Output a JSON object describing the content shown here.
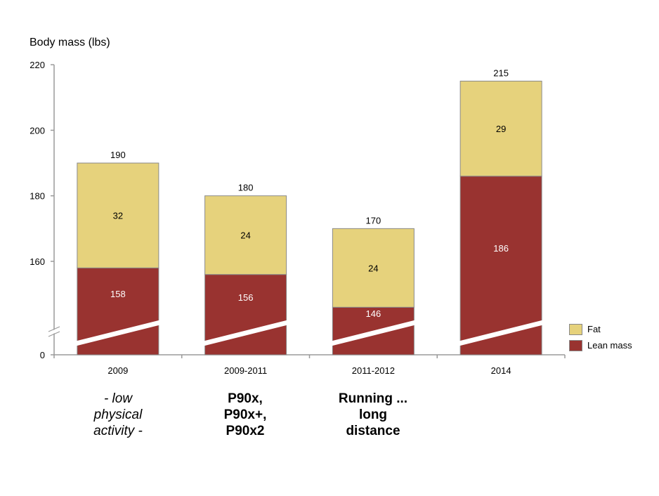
{
  "chart_data": {
    "type": "bar",
    "stacked": true,
    "title": "",
    "ylabel": "Body mass (lbs)",
    "xlabel": "",
    "categories": [
      "2009",
      "2009-2011",
      "2011-2012",
      "2014"
    ],
    "series": [
      {
        "name": "Lean mass",
        "color": "#993330",
        "values": [
          158,
          156,
          146,
          186
        ]
      },
      {
        "name": "Fat",
        "color": "#E6D27C",
        "values": [
          32,
          24,
          24,
          29
        ]
      }
    ],
    "totals": [
      190,
      180,
      170,
      215
    ],
    "ylim": [
      0,
      220
    ],
    "axis_break": true,
    "yticks": [
      "0",
      "160",
      "180",
      "200",
      "220"
    ],
    "legend": {
      "position": "right",
      "entries": [
        "Fat",
        "Lean mass"
      ]
    },
    "grid": false
  },
  "annotations": [
    {
      "lines": [
        "- low",
        "physical",
        "activity -"
      ],
      "style": "italic"
    },
    {
      "lines": [
        "P90x,",
        "P90x+,",
        "P90x2"
      ],
      "style": "bold"
    },
    {
      "lines": [
        "Running ...",
        "long",
        "distance"
      ],
      "style": "bold"
    }
  ]
}
